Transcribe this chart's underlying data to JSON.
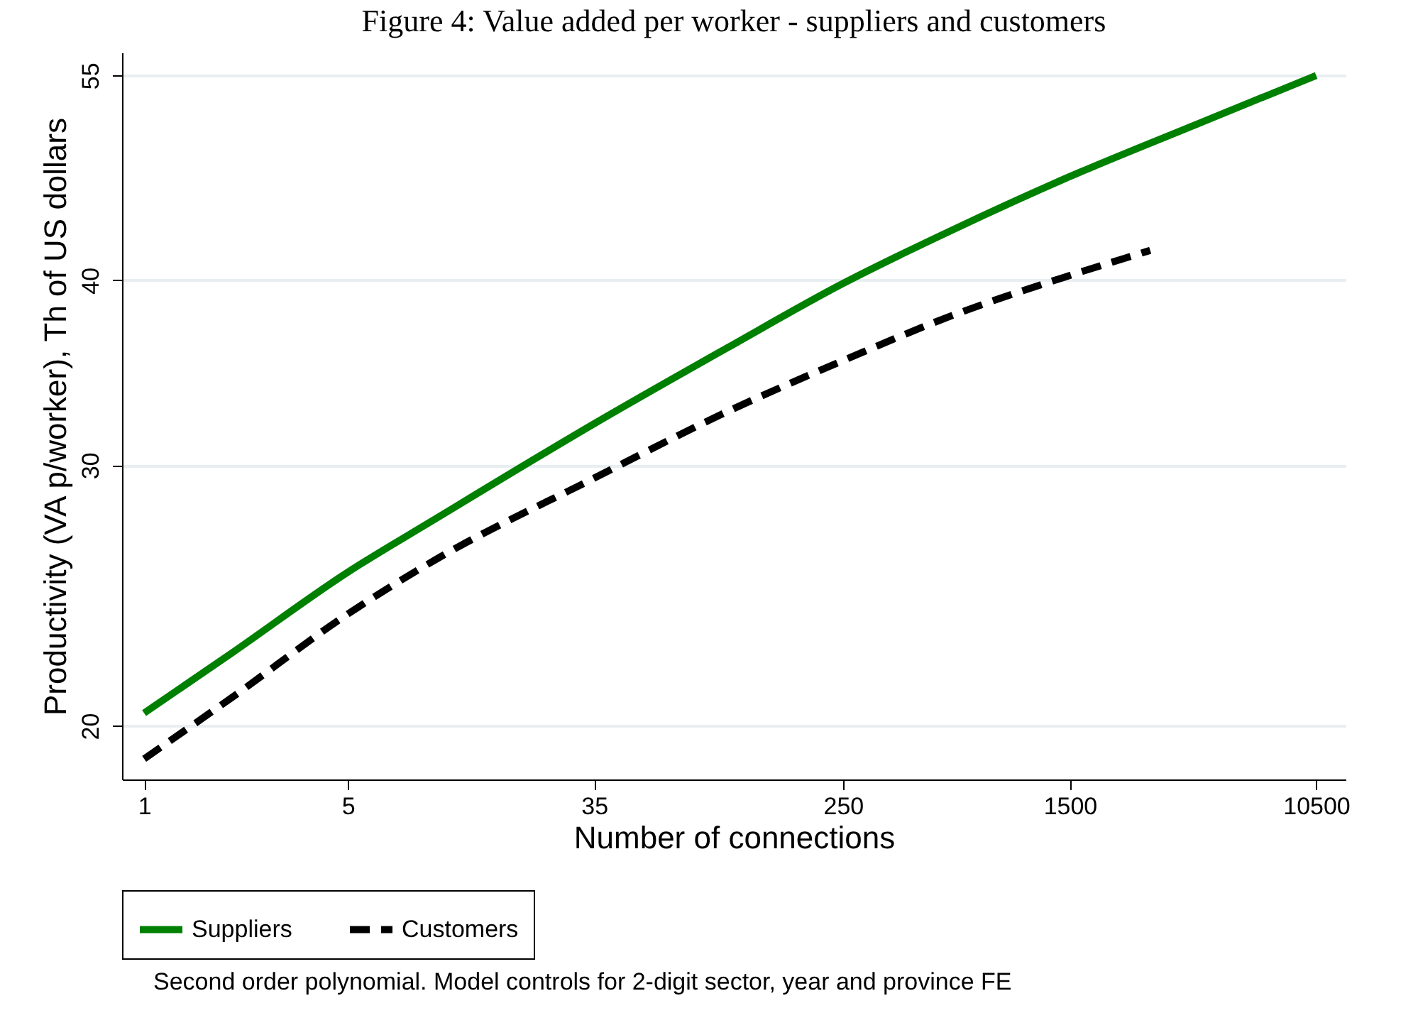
{
  "chart_data": {
    "type": "line",
    "title": "Figure 4: Value added per worker - suppliers and customers",
    "xlabel": "Number of connections",
    "ylabel": "Productivity (VA p/worker), Th of US dollars",
    "log": "xy",
    "xlim": [
      0.84,
      13250
    ],
    "xticks": [
      1,
      5,
      35,
      250,
      1500,
      10500
    ],
    "ylim": [
      18.4,
      57
    ],
    "yticks": [
      20,
      30,
      40,
      55
    ],
    "grid": "y",
    "legend": "bottom",
    "annotations": [
      "Second order polynomial. Model controls for 2-digit sector, year and province FE"
    ],
    "series": [
      {
        "name": "Suppliers",
        "color": "#008000",
        "line_style": "solid",
        "x": [
          1,
          2,
          5,
          10,
          35,
          100,
          250,
          600,
          1500,
          4000,
          10500
        ],
        "values": [
          20.4,
          22.4,
          25.4,
          27.6,
          32.0,
          36.0,
          39.8,
          43.3,
          47.0,
          50.9,
          55.0
        ]
      },
      {
        "name": "Customers",
        "color": "#000000",
        "line_style": "dashed",
        "x": [
          1,
          2,
          5,
          10,
          35,
          100,
          250,
          600,
          1500,
          2830
        ],
        "values": [
          19.0,
          20.9,
          23.8,
          25.9,
          29.4,
          32.6,
          35.3,
          37.9,
          40.3,
          41.9
        ]
      }
    ]
  }
}
